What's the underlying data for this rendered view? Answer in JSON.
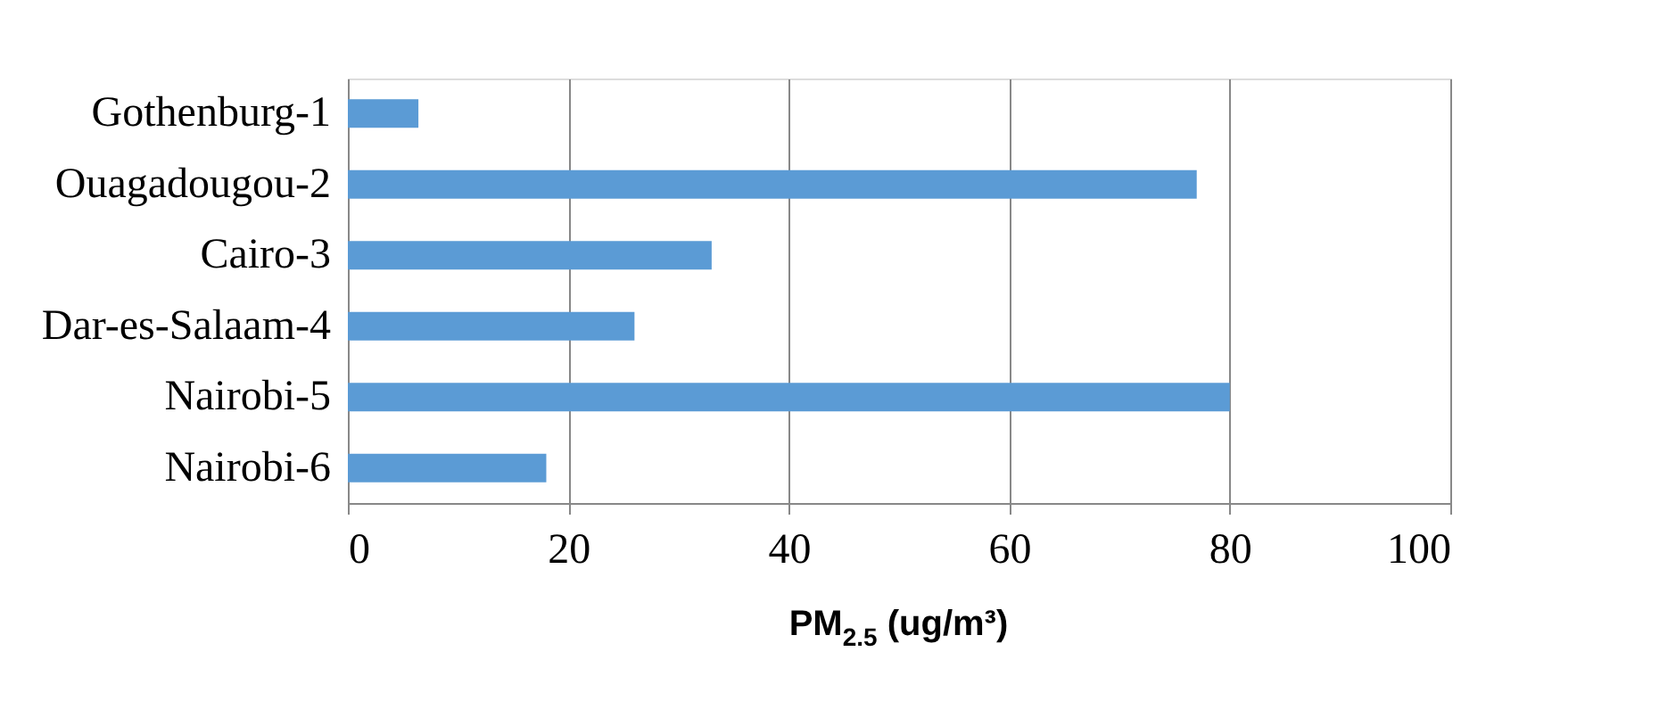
{
  "chart_data": {
    "type": "bar",
    "orientation": "horizontal",
    "categories": [
      "Gothenburg-1",
      "Ouagadougou-2",
      "Cairo-3",
      "Dar-es-Salaam-4",
      "Nairobi-5",
      "Nairobi-6"
    ],
    "values": [
      6.4,
      77,
      33,
      26,
      80,
      18
    ],
    "color": "#5b9bd5",
    "xlabel": "PM$_{2.5}$ (ug/m³)",
    "xlim": [
      0,
      100
    ],
    "xticks": [
      0,
      20,
      40,
      60,
      80,
      100
    ],
    "grid": "x"
  }
}
